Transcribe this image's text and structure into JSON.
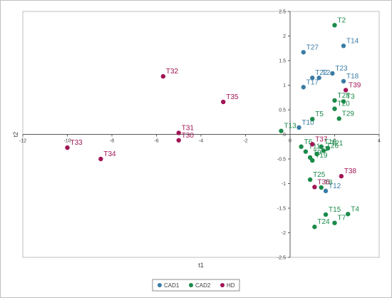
{
  "chart_data": {
    "type": "scatter",
    "xlabel": "t1",
    "ylabel": "t2",
    "xlim": [
      -12,
      4
    ],
    "ylim": [
      -2.5,
      2.5
    ],
    "xticks": [
      -12,
      -10,
      -8,
      -6,
      -4,
      -2,
      0,
      2,
      4
    ],
    "yticks": [
      -2.5,
      -2,
      -1.5,
      -1,
      -0.5,
      0,
      0.5,
      1,
      1.5,
      2,
      2.5
    ],
    "legend_position": "bottom-center",
    "series": [
      {
        "name": "CAD1",
        "color": "#3a7ca5",
        "points": [
          {
            "label": "T2",
            "x": 1.3,
            "y": 1.15
          },
          {
            "label": "T27",
            "x": 0.6,
            "y": 1.67
          },
          {
            "label": "T14",
            "x": 2.4,
            "y": 1.8
          },
          {
            "label": "T22",
            "x": 1.0,
            "y": 1.15
          },
          {
            "label": "T23",
            "x": 1.9,
            "y": 1.24
          },
          {
            "label": "T18",
            "x": 2.4,
            "y": 1.08
          },
          {
            "label": "T17",
            "x": 0.6,
            "y": 0.96
          },
          {
            "label": "T10",
            "x": 0.4,
            "y": 0.14
          },
          {
            "label": "T12",
            "x": 1.6,
            "y": -1.15
          }
        ]
      },
      {
        "name": "CAD2",
        "color": "#1b8a4a",
        "points": [
          {
            "label": "T2",
            "x": 2.0,
            "y": 2.22
          },
          {
            "label": "T28",
            "x": 2.0,
            "y": 0.69
          },
          {
            "label": "T3",
            "x": 2.4,
            "y": 0.67
          },
          {
            "label": "T20",
            "x": 2.0,
            "y": 0.52
          },
          {
            "label": "T29",
            "x": 2.2,
            "y": 0.32
          },
          {
            "label": "T5",
            "x": 1.0,
            "y": 0.31
          },
          {
            "label": "T13",
            "x": -0.4,
            "y": 0.07
          },
          {
            "label": "T16",
            "x": 1.4,
            "y": -0.25
          },
          {
            "label": "T21",
            "x": 1.7,
            "y": -0.28
          },
          {
            "label": "T6",
            "x": 0.5,
            "y": -0.25
          },
          {
            "label": "T11",
            "x": 0.7,
            "y": -0.35
          },
          {
            "label": "T9",
            "x": 0.9,
            "y": -0.47
          },
          {
            "label": "T1",
            "x": 1.2,
            "y": -0.4
          },
          {
            "label": "T26",
            "x": 1.5,
            "y": -0.33
          },
          {
            "label": "T19",
            "x": 1.0,
            "y": -0.53
          },
          {
            "label": "T25",
            "x": 0.9,
            "y": -0.92
          },
          {
            "label": "T8",
            "x": 1.4,
            "y": -1.08
          },
          {
            "label": "T15",
            "x": 1.6,
            "y": -1.63
          },
          {
            "label": "T4",
            "x": 2.6,
            "y": -1.62
          },
          {
            "label": "T7",
            "x": 2.0,
            "y": -1.8
          },
          {
            "label": "T24",
            "x": 1.1,
            "y": -1.88
          }
        ]
      },
      {
        "name": "HD",
        "color": "#a11556",
        "points": [
          {
            "label": "T32",
            "x": -5.7,
            "y": 1.18
          },
          {
            "label": "T35",
            "x": -3.0,
            "y": 0.66
          },
          {
            "label": "T39",
            "x": 2.5,
            "y": 0.9
          },
          {
            "label": "T37",
            "x": 1.0,
            "y": -0.2
          },
          {
            "label": "T31",
            "x": -5.0,
            "y": 0.03
          },
          {
            "label": "T30",
            "x": -5.0,
            "y": -0.12
          },
          {
            "label": "T33",
            "x": -10.0,
            "y": -0.27
          },
          {
            "label": "T34",
            "x": -8.5,
            "y": -0.5
          },
          {
            "label": "T38",
            "x": 2.3,
            "y": -0.85
          },
          {
            "label": "T36",
            "x": 1.1,
            "y": -1.07
          }
        ]
      }
    ]
  }
}
